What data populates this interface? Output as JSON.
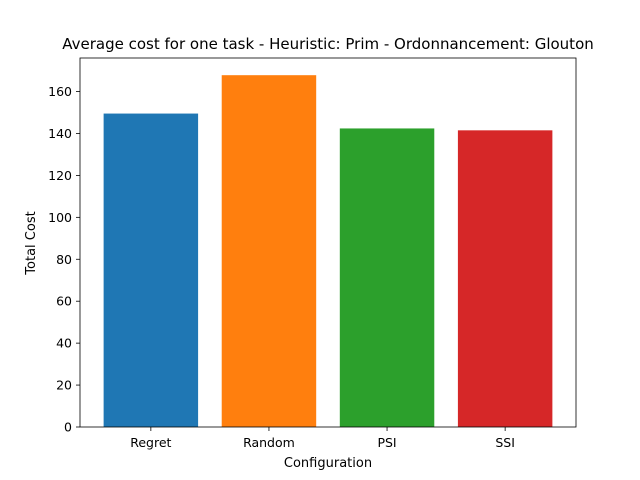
{
  "chart_data": {
    "type": "bar",
    "title": "Average cost for one task - Heuristic: Prim - Ordonnancement: Glouton",
    "xlabel": "Configuration",
    "ylabel": "Total Cost",
    "categories": [
      "Regret",
      "Random",
      "PSI",
      "SSI"
    ],
    "values": [
      149.5,
      167.8,
      142.4,
      141.5
    ],
    "colors": [
      "#1f77b4",
      "#ff7f0e",
      "#2ca02c",
      "#d62728"
    ],
    "ylim": [
      0,
      176
    ],
    "yticks": [
      0,
      20,
      40,
      60,
      80,
      100,
      120,
      140,
      160
    ],
    "grid": false,
    "legend": "none"
  }
}
